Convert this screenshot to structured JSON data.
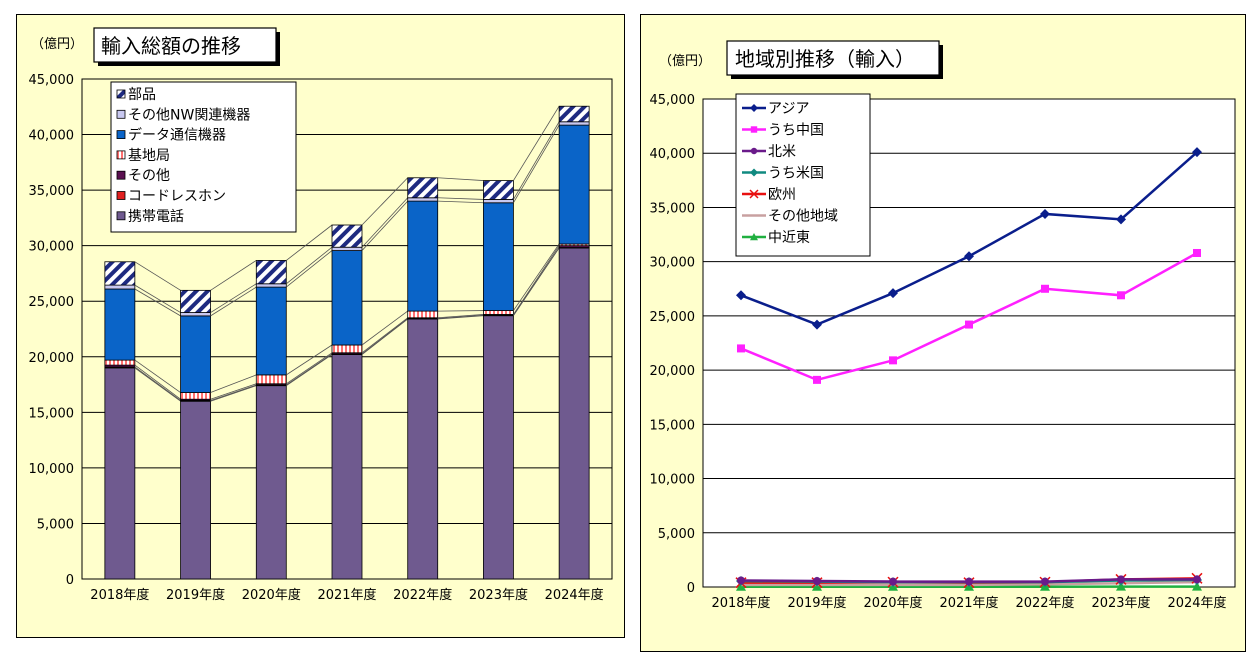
{
  "chart_data": [
    {
      "type": "stacked-bar",
      "title": "輸入総額の推移",
      "unit": "（億円）",
      "categories": [
        "2018年度",
        "2019年度",
        "2020年度",
        "2021年度",
        "2022年度",
        "2023年度",
        "2024年度"
      ],
      "ylim": [
        0,
        45000
      ],
      "yticks": [
        "0",
        "5,000",
        "10,000",
        "15,000",
        "20,000",
        "25,000",
        "30,000",
        "35,000",
        "40,000",
        "45,000"
      ],
      "grid": true,
      "legend_position": "top-left",
      "series": [
        {
          "name": "携帯電話",
          "color": "#6f5a8f",
          "values": [
            19000,
            16000,
            17400,
            20200,
            23400,
            23700,
            29800
          ]
        },
        {
          "name": "コードレスホン",
          "color": "#e02020",
          "values": [
            80,
            70,
            60,
            50,
            40,
            40,
            30
          ]
        },
        {
          "name": "その他",
          "color": "#5a1050",
          "values": [
            170,
            110,
            110,
            110,
            70,
            70,
            170
          ]
        },
        {
          "name": "基地局",
          "color": "#ffc8c8",
          "values": [
            450,
            600,
            800,
            700,
            600,
            350,
            150
          ]
        },
        {
          "name": "データ通信機器",
          "color": "#0a64c8",
          "values": [
            6400,
            6900,
            7900,
            8500,
            9900,
            9700,
            10700
          ]
        },
        {
          "name": "その他NW関連機器",
          "color": "#c8c8f0",
          "values": [
            350,
            300,
            300,
            300,
            300,
            300,
            300
          ]
        },
        {
          "name": "部品",
          "color": "#1e2a80",
          "values": [
            2100,
            2000,
            2100,
            2000,
            1800,
            1700,
            1400
          ]
        }
      ]
    },
    {
      "type": "line",
      "title": "地域別推移（輸入）",
      "unit": "（億円）",
      "categories": [
        "2018年度",
        "2019年度",
        "2020年度",
        "2021年度",
        "2022年度",
        "2023年度",
        "2024年度"
      ],
      "ylim": [
        0,
        45000
      ],
      "yticks": [
        "0",
        "5,000",
        "10,000",
        "15,000",
        "20,000",
        "25,000",
        "30,000",
        "35,000",
        "40,000",
        "45,000"
      ],
      "grid": true,
      "legend_position": "top-left",
      "series": [
        {
          "name": "アジア",
          "color": "#0a1e8c",
          "marker": "diamond",
          "values": [
            26900,
            24200,
            27100,
            30500,
            34400,
            33900,
            40100
          ]
        },
        {
          "name": "うち中国",
          "color": "#ff20ff",
          "marker": "square",
          "values": [
            22000,
            19100,
            20900,
            24200,
            27500,
            26900,
            30800
          ]
        },
        {
          "name": "北米",
          "color": "#6a1a8a",
          "marker": "circle",
          "values": [
            600,
            550,
            500,
            500,
            500,
            700,
            700
          ]
        },
        {
          "name": "うち米国",
          "color": "#108a80",
          "marker": "diamond",
          "values": [
            550,
            500,
            450,
            450,
            450,
            600,
            650
          ]
        },
        {
          "name": "欧州",
          "color": "#e81010",
          "marker": "x",
          "values": [
            400,
            400,
            450,
            400,
            450,
            700,
            800
          ]
        },
        {
          "name": "その他地域",
          "color": "#c8a0a0",
          "marker": "none",
          "values": [
            200,
            200,
            200,
            200,
            250,
            350,
            450
          ]
        },
        {
          "name": "中近東",
          "color": "#20b040",
          "marker": "triangle",
          "values": [
            20,
            20,
            20,
            20,
            20,
            30,
            30
          ]
        }
      ]
    }
  ]
}
